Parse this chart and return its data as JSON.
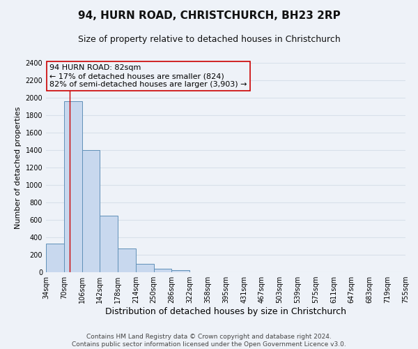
{
  "title": "94, HURN ROAD, CHRISTCHURCH, BH23 2RP",
  "subtitle": "Size of property relative to detached houses in Christchurch",
  "xlabel": "Distribution of detached houses by size in Christchurch",
  "ylabel": "Number of detached properties",
  "bin_edges": [
    34,
    70,
    106,
    142,
    178,
    214,
    250,
    286,
    322,
    358,
    395,
    431,
    467,
    503,
    539,
    575,
    611,
    647,
    683,
    719,
    755
  ],
  "bin_counts": [
    325,
    1960,
    1400,
    645,
    275,
    100,
    42,
    28,
    0,
    0,
    0,
    0,
    0,
    0,
    0,
    0,
    0,
    0,
    0,
    0
  ],
  "bar_color": "#c8d8ee",
  "bar_edge_color": "#6090b8",
  "property_size": 82,
  "vline_color": "#cc0000",
  "annotation_line1": "94 HURN ROAD: 82sqm",
  "annotation_line2": "← 17% of detached houses are smaller (824)",
  "annotation_line3": "82% of semi-detached houses are larger (3,903) →",
  "annotation_box_edge_color": "#cc0000",
  "ylim": [
    0,
    2400
  ],
  "yticks": [
    0,
    200,
    400,
    600,
    800,
    1000,
    1200,
    1400,
    1600,
    1800,
    2000,
    2200,
    2400
  ],
  "tick_labels": [
    "34sqm",
    "70sqm",
    "106sqm",
    "142sqm",
    "178sqm",
    "214sqm",
    "250sqm",
    "286sqm",
    "322sqm",
    "358sqm",
    "395sqm",
    "431sqm",
    "467sqm",
    "503sqm",
    "539sqm",
    "575sqm",
    "611sqm",
    "647sqm",
    "683sqm",
    "719sqm",
    "755sqm"
  ],
  "footer_text": "Contains HM Land Registry data © Crown copyright and database right 2024.\nContains public sector information licensed under the Open Government Licence v3.0.",
  "background_color": "#eef2f8",
  "grid_color": "#d8e0ea",
  "title_fontsize": 11,
  "subtitle_fontsize": 9,
  "xlabel_fontsize": 9,
  "ylabel_fontsize": 8,
  "tick_fontsize": 7,
  "annotation_fontsize": 8,
  "footer_fontsize": 6.5
}
